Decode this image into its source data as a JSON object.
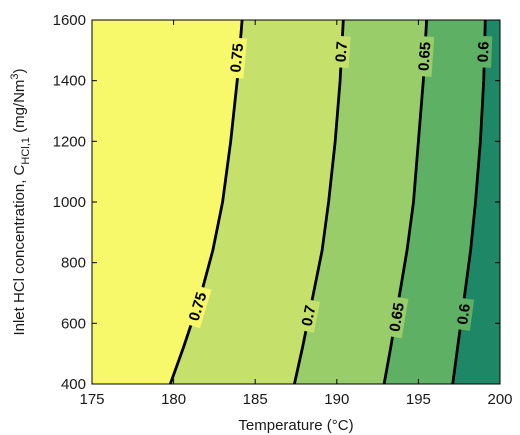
{
  "chart_data": {
    "type": "contour",
    "xlabel": "Temperature (°C)",
    "ylabel_parts": {
      "prefix": "Inlet HCl concentration, C",
      "subscript": "HCl,1",
      "unit_prefix": " (mg/Nm",
      "superscript": "3",
      "unit_suffix": ")"
    },
    "xlim": [
      175,
      200
    ],
    "ylim": [
      400,
      1600
    ],
    "xticks": [
      "175",
      "180",
      "185",
      "190",
      "195",
      "200"
    ],
    "yticks": [
      "400",
      "600",
      "800",
      "1000",
      "1200",
      "1400",
      "1600"
    ],
    "grid": false,
    "legend": "none",
    "contours": [
      {
        "level": 0.75,
        "label": "0.75",
        "points": [
          [
            179.8,
            400
          ],
          [
            180.6,
            520
          ],
          [
            181.6,
            680
          ],
          [
            182.4,
            840
          ],
          [
            183.0,
            1000
          ],
          [
            183.5,
            1200
          ],
          [
            183.9,
            1400
          ],
          [
            184.2,
            1600
          ]
        ],
        "label_at": [
          [
            181.5,
            655
          ],
          [
            183.9,
            1475
          ]
        ]
      },
      {
        "level": 0.7,
        "label": "0.7",
        "points": [
          [
            187.4,
            400
          ],
          [
            187.9,
            520
          ],
          [
            188.5,
            680
          ],
          [
            189.1,
            840
          ],
          [
            189.5,
            1000
          ],
          [
            189.9,
            1200
          ],
          [
            190.2,
            1400
          ],
          [
            190.4,
            1600
          ]
        ],
        "label_at": [
          [
            188.3,
            625
          ],
          [
            190.3,
            1495
          ]
        ]
      },
      {
        "level": 0.65,
        "label": "0.65",
        "points": [
          [
            192.9,
            400
          ],
          [
            193.3,
            520
          ],
          [
            193.8,
            680
          ],
          [
            194.3,
            840
          ],
          [
            194.7,
            1000
          ],
          [
            195.0,
            1200
          ],
          [
            195.3,
            1400
          ],
          [
            195.5,
            1600
          ]
        ],
        "label_at": [
          [
            193.7,
            620
          ],
          [
            195.4,
            1480
          ]
        ]
      },
      {
        "level": 0.6,
        "label": "0.6",
        "points": [
          [
            197.1,
            400
          ],
          [
            197.4,
            520
          ],
          [
            197.8,
            680
          ],
          [
            198.2,
            840
          ],
          [
            198.5,
            1000
          ],
          [
            198.8,
            1200
          ],
          [
            199.0,
            1400
          ],
          [
            199.1,
            1600
          ]
        ],
        "label_at": [
          [
            197.8,
            630
          ],
          [
            199.0,
            1495
          ]
        ]
      }
    ],
    "band_colors": [
      "#f7f86a",
      "#c5e16c",
      "#98cd6a",
      "#5eb065",
      "#1e8765"
    ]
  }
}
